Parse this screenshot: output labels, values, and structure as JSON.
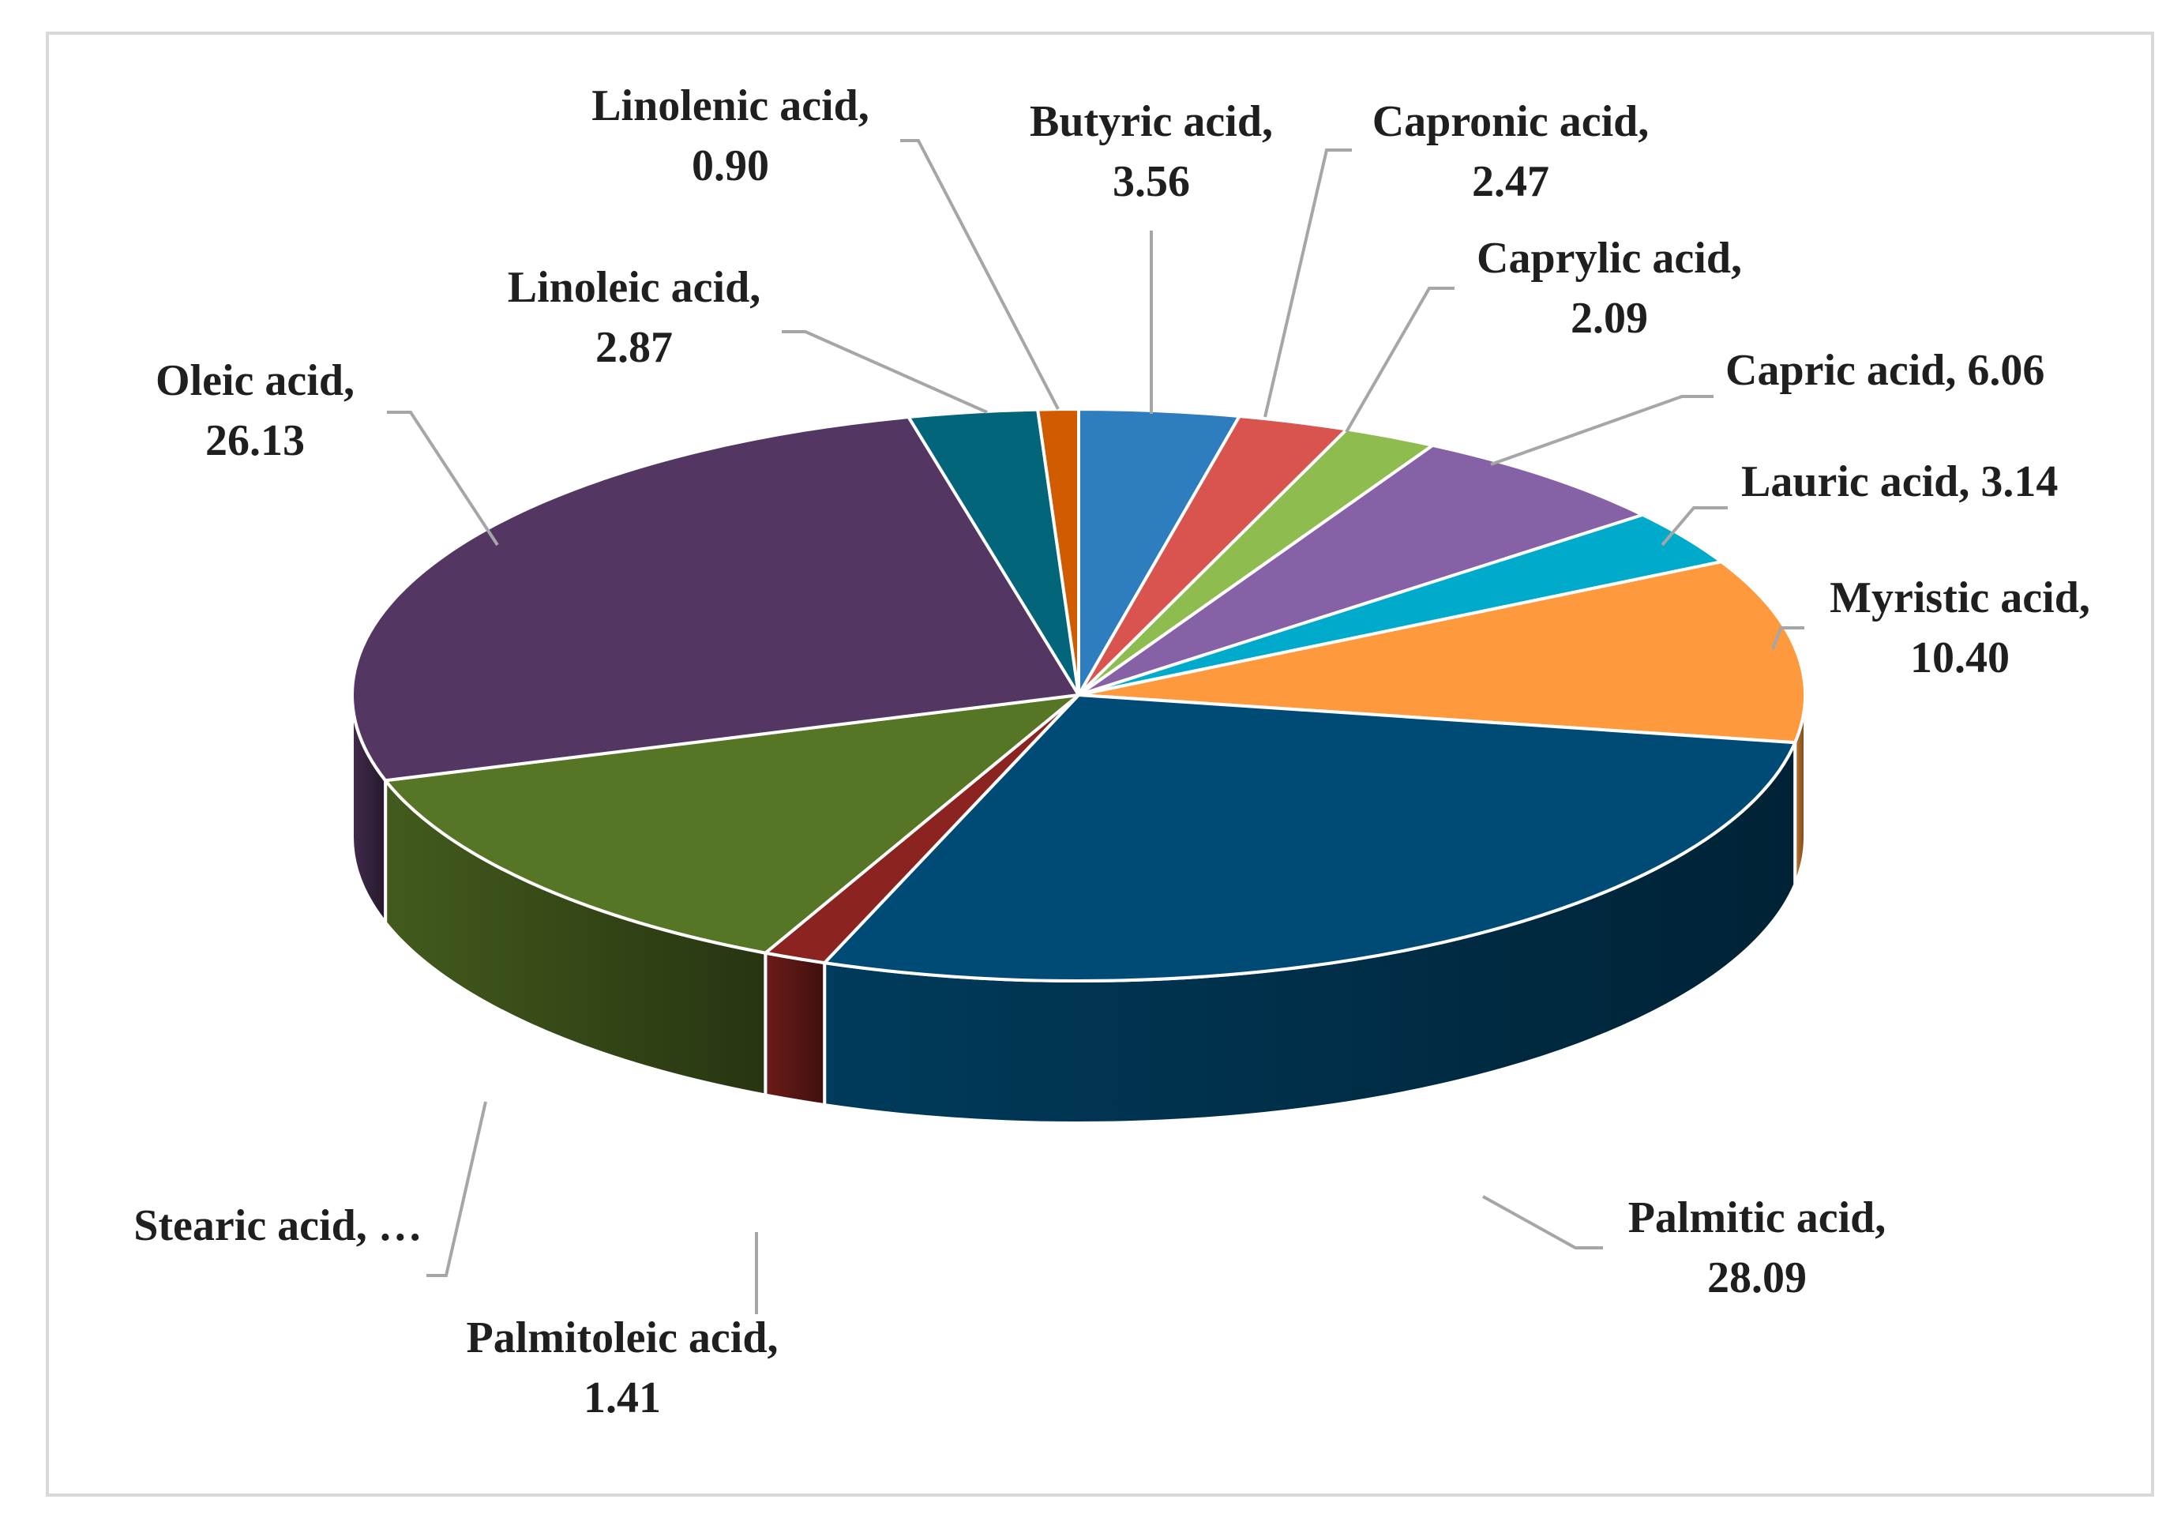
{
  "chart_data": {
    "type": "pie",
    "variant": "3d",
    "start_angle_deg": 270,
    "slices": [
      {
        "label": "Butyric acid",
        "value": 3.56,
        "display": "3.56",
        "color": "#2e7ebf"
      },
      {
        "label": "Capronic acid",
        "value": 2.47,
        "display": "2.47",
        "color": "#d9534f"
      },
      {
        "label": "Caprylic acid",
        "value": 2.09,
        "display": "2.09",
        "color": "#8fbc4f"
      },
      {
        "label": "Capric acid",
        "value": 6.06,
        "display": "6.06",
        "color": "#8661a5"
      },
      {
        "label": "Lauric acid",
        "value": 3.14,
        "display": "3.14",
        "color": "#00aacb"
      },
      {
        "label": "Myristic acid",
        "value": 10.4,
        "display": "10.40",
        "color": "#fe9a3d"
      },
      {
        "label": "Palmitic acid",
        "value": 28.09,
        "display": "28.09",
        "color": "#004b76"
      },
      {
        "label": "Palmitoleic acid",
        "value": 1.41,
        "display": "1.41",
        "color": "#8b2420"
      },
      {
        "label": "Stearic acid",
        "value": 13.1,
        "display": "…",
        "color": "#567525"
      },
      {
        "label": "Oleic acid",
        "value": 26.13,
        "display": "26.13",
        "color": "#533762"
      },
      {
        "label": "Linoleic acid",
        "value": 2.87,
        "display": "2.87",
        "color": "#03657a"
      },
      {
        "label": "Linolenic acid",
        "value": 0.9,
        "display": "0.90",
        "color": "#d15b00"
      }
    ]
  }
}
